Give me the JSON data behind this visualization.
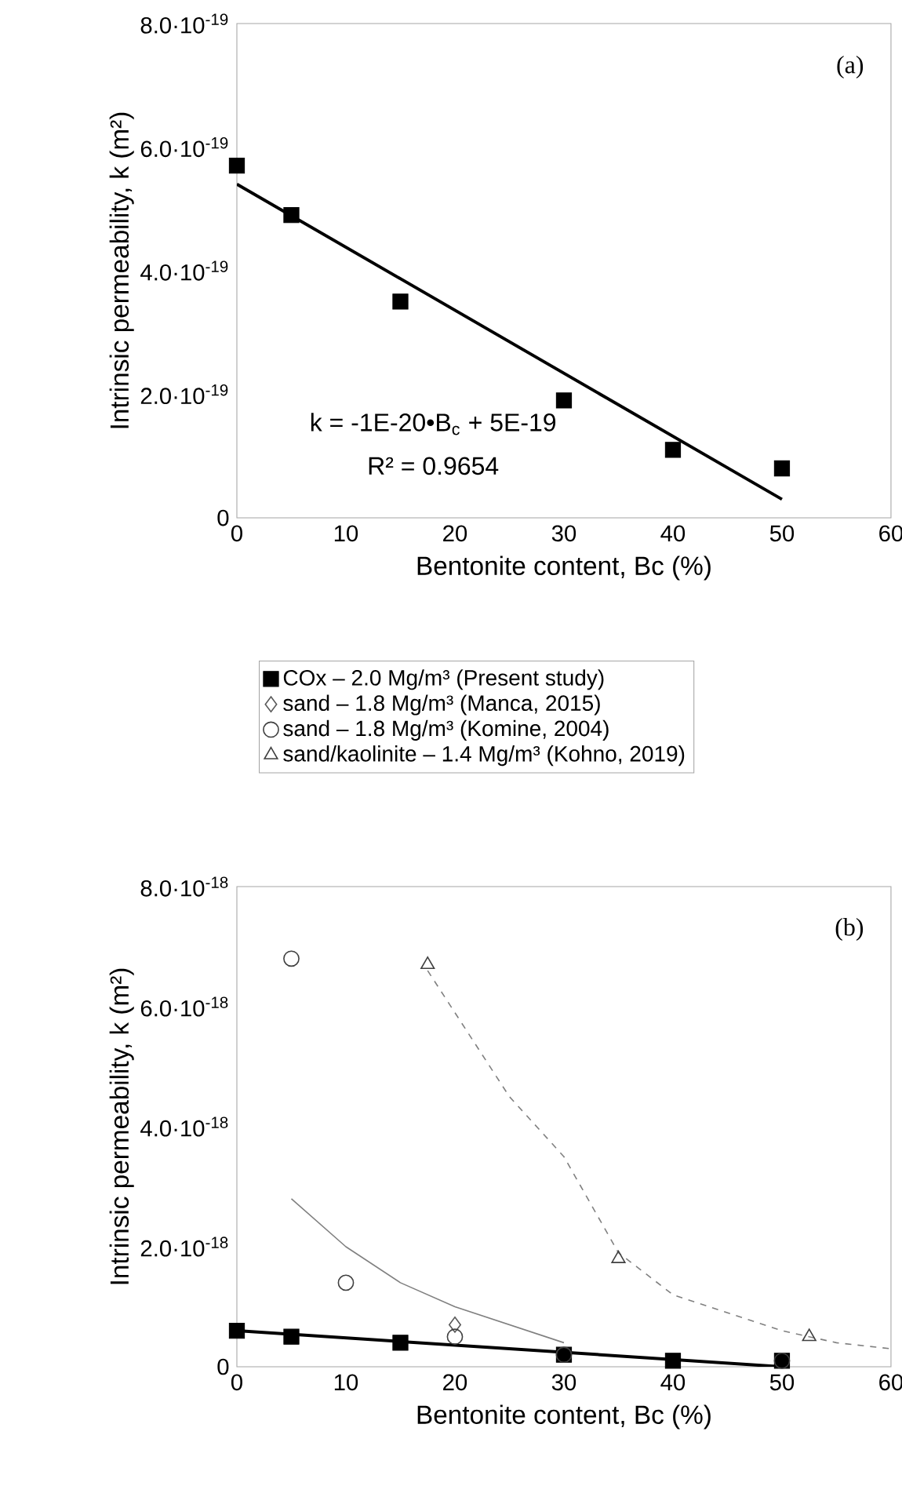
{
  "chart_data": [
    {
      "type": "scatter",
      "xlabel": "Bentonite content, Bc (%)",
      "ylabel": "Intrinsic permeability,  k (m²)",
      "annotations": [
        "(a)",
        "k = -1E-20•B$_{c}$ + 5E-19",
        "R² = 0.9654"
      ],
      "xlim": [
        0,
        60
      ],
      "xticks": [
        0,
        10,
        20,
        30,
        40,
        50,
        60
      ],
      "ylim": [
        0,
        8e-19
      ],
      "yticks": [
        0,
        {
          "value": 2e-19,
          "label": "2.0·10$^{-19}$"
        },
        {
          "value": 4e-19,
          "label": "4.0·10$^{-19}$"
        },
        {
          "value": 6e-19,
          "label": "6.0·10$^{-19}$"
        },
        {
          "value": 8e-19,
          "label": "8.0·10$^{-19}$"
        }
      ],
      "series": [
        {
          "marker": "square",
          "color": "#000000",
          "x": [
            0,
            5,
            15,
            30,
            40,
            50
          ],
          "values": [
            5.7e-19,
            4.9e-19,
            3.5e-19,
            1.9e-19,
            1.1e-19,
            8e-20
          ]
        },
        {
          "type": "line",
          "line_style": "solid",
          "color": "#000000",
          "x": [
            0,
            50
          ],
          "values": [
            5.4e-19,
            3e-20
          ]
        }
      ]
    },
    {
      "type": "scatter",
      "xlabel": "Bentonite content, Bc (%)",
      "ylabel": "Intrinsic permeability,  k (m²)",
      "annotations": [
        "(b)"
      ],
      "legend": "top",
      "xlim": [
        0,
        60
      ],
      "xticks": [
        0,
        10,
        20,
        30,
        40,
        50,
        60
      ],
      "ylim": [
        0,
        8e-18
      ],
      "yticks": [
        0,
        {
          "value": 2e-18,
          "label": "2.0·10$^{-18}$"
        },
        {
          "value": 4e-18,
          "label": "4.0·10$^{-18}$"
        },
        {
          "value": 6e-18,
          "label": "6.0·10$^{-18}$"
        },
        {
          "value": 8e-18,
          "label": "8.0·10$^{-18}$"
        }
      ],
      "series": [
        {
          "name": "COx – 2.0 Mg/m³ (Present study)",
          "marker": "square",
          "color": "#000000",
          "x": [
            0,
            5,
            15,
            30,
            40,
            50
          ],
          "values": [
            6e-19,
            5e-19,
            4e-19,
            2e-19,
            1e-19,
            1e-19
          ]
        },
        {
          "name": "sand – 1.8 Mg/m³ (Manca, 2015)",
          "marker": "diamond",
          "color": "#595959",
          "x": [
            20
          ],
          "values": [
            7e-19
          ]
        },
        {
          "name": "sand – 1.8 Mg/m³ (Komine, 2004)",
          "marker": "circle",
          "color": "#404040",
          "x": [
            5,
            10,
            20,
            30,
            50
          ],
          "values": [
            6.8e-18,
            1.4e-18,
            5e-19,
            2e-19,
            1e-19
          ]
        },
        {
          "name": "sand/kaolinite – 1.4 Mg/m³ (Kohno, 2019)",
          "marker": "triangle",
          "color": "#404040",
          "x": [
            17.5,
            35,
            52.5
          ],
          "values": [
            6.7e-18,
            1.8e-18,
            5e-19
          ]
        },
        {
          "type": "line",
          "line_style": "solid",
          "color": "#000000",
          "x": [
            0,
            50
          ],
          "values": [
            6e-19,
            0.0
          ]
        },
        {
          "type": "line",
          "line_style": "solid",
          "color": "#808080",
          "x": [
            5,
            10,
            15,
            20,
            25,
            30
          ],
          "values": [
            2.8e-18,
            2e-18,
            1.4e-18,
            1e-18,
            7e-19,
            4e-19
          ]
        },
        {
          "type": "line",
          "line_style": "dashed",
          "color": "#808080",
          "x": [
            17.5,
            20,
            25,
            30,
            35,
            40,
            45,
            50,
            55,
            60
          ],
          "values": [
            6.6e-18,
            5.9e-18,
            4.5e-18,
            3.5e-18,
            1.9e-18,
            1.2e-18,
            9e-19,
            6e-19,
            4e-19,
            3e-19
          ]
        }
      ]
    }
  ]
}
